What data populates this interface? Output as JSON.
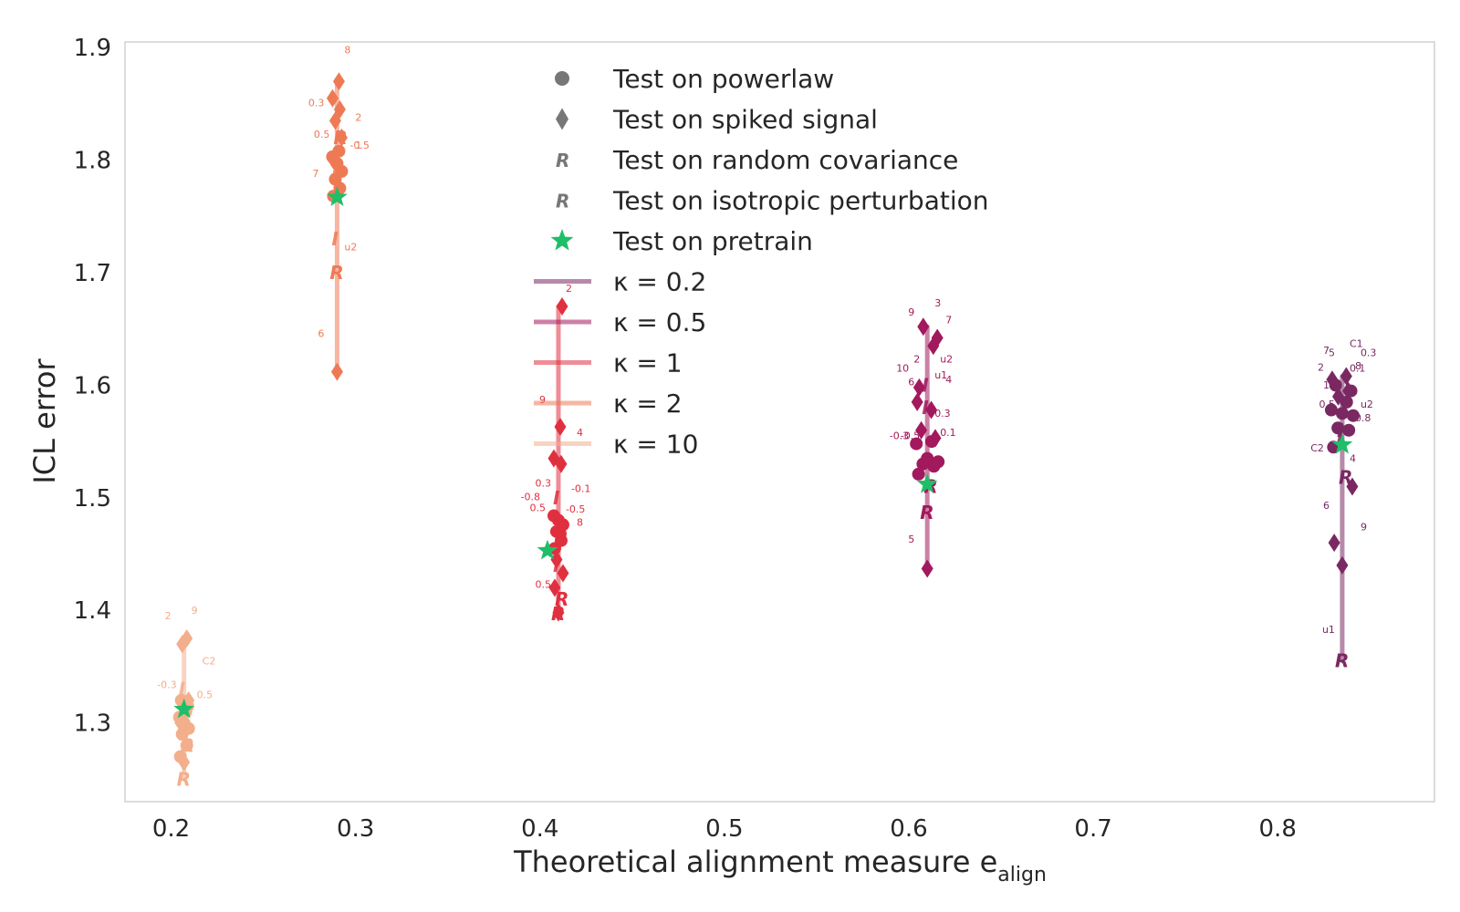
{
  "chart_data": {
    "type": "scatter",
    "title": "",
    "xlabel": "Theoretical alignment measure e",
    "xlabel_subscript": "align",
    "ylabel": "ICL error",
    "xlim": [
      0.175,
      0.885
    ],
    "ylim": [
      1.23,
      1.905
    ],
    "xticks": [
      "0.2",
      "0.3",
      "0.4",
      "0.5",
      "0.6",
      "0.7",
      "0.8"
    ],
    "yticks": [
      "1.3",
      "1.4",
      "1.5",
      "1.6",
      "1.7",
      "1.8",
      "1.9"
    ],
    "grid": false,
    "legend_position": "top-center",
    "legend": {
      "markers": [
        {
          "label": "Test on powerlaw",
          "marker": "circle"
        },
        {
          "label": "Test on spiked signal",
          "marker": "diamond"
        },
        {
          "label": "Test on random covariance",
          "marker": "R"
        },
        {
          "label": "Test on isotropic perturbation",
          "marker": "R"
        },
        {
          "label": "Test on pretrain",
          "marker": "star"
        }
      ],
      "kappa": [
        {
          "label": "κ =  0.2",
          "color": "#7a2862"
        },
        {
          "label": "κ =  0.5",
          "color": "#a2195d"
        },
        {
          "label": "κ =  1",
          "color": "#e0303f"
        },
        {
          "label": "κ =  2",
          "color": "#ee7a55"
        },
        {
          "label": "κ =  10",
          "color": "#f3ae8c"
        }
      ]
    },
    "pretrain_color": "#1fbe68",
    "series": [
      {
        "name": "κ =  10",
        "color": "#f3ae8c",
        "x": 0.207,
        "pretrain": 1.312,
        "powerlaw": [
          1.27,
          1.28,
          1.29,
          1.295,
          1.3,
          1.305,
          1.31,
          1.315,
          1.32
        ],
        "spiked": [
          1.265,
          1.3,
          1.32,
          1.37,
          1.375
        ],
        "random": [
          1.25,
          1.28
        ],
        "isotropic": [
          1.29,
          1.33
        ],
        "labels": [
          {
            "t": "9",
            "y": 1.397
          },
          {
            "t": "2",
            "y": 1.392
          },
          {
            "t": "C2",
            "y": 1.352
          },
          {
            "t": "-0.3",
            "y": 1.331
          },
          {
            "t": "0.5",
            "y": 1.322
          }
        ]
      },
      {
        "name": "κ =  2",
        "color": "#ee7a55",
        "x": 0.29,
        "pretrain": 1.767,
        "powerlaw": [
          1.768,
          1.775,
          1.783,
          1.79,
          1.797,
          1.803,
          1.808
        ],
        "spiked": [
          1.612,
          1.8,
          1.82,
          1.835,
          1.845,
          1.855,
          1.87
        ],
        "random": [
          1.7,
          1.82
        ],
        "isotropic": [
          1.73,
          1.79
        ],
        "labels": [
          {
            "t": "8",
            "y": 1.895
          },
          {
            "t": "0.3",
            "y": 1.848
          },
          {
            "t": "2",
            "y": 1.835
          },
          {
            "t": "0.5",
            "y": 1.82
          },
          {
            "t": "-0.5",
            "y": 1.81
          },
          {
            "t": "7",
            "y": 1.785
          },
          {
            "t": "u2",
            "y": 1.72
          },
          {
            "t": "6",
            "y": 1.643
          },
          {
            "t": "1",
            "y": 1.81
          }
        ]
      },
      {
        "name": "κ =  1",
        "color": "#e0303f",
        "x": 0.41,
        "pretrain": 1.453,
        "powerlaw": [
          1.455,
          1.462,
          1.47,
          1.476,
          1.48,
          1.484,
          1.468
        ],
        "spiked": [
          1.398,
          1.42,
          1.433,
          1.445,
          1.53,
          1.535,
          1.563,
          1.67
        ],
        "random": [
          1.397,
          1.41
        ],
        "isotropic": [
          1.44,
          1.5
        ],
        "labels": [
          {
            "t": "2",
            "y": 1.683
          },
          {
            "t": "9",
            "y": 1.584
          },
          {
            "t": "4",
            "y": 1.555
          },
          {
            "t": "0.3",
            "y": 1.51
          },
          {
            "t": "-0.1",
            "y": 1.505
          },
          {
            "t": "-0.8",
            "y": 1.498
          },
          {
            "t": "-0.5",
            "y": 1.487
          },
          {
            "t": "0.5",
            "y": 1.488
          },
          {
            "t": "8",
            "y": 1.475
          },
          {
            "t": "0.5",
            "y": 1.42
          }
        ]
      },
      {
        "name": "κ =  0.5",
        "color": "#a2195d",
        "x": 0.61,
        "pretrain": 1.512,
        "powerlaw": [
          1.521,
          1.528,
          1.53,
          1.532,
          1.535,
          1.548,
          1.55
        ],
        "spiked": [
          1.437,
          1.598,
          1.642,
          1.652,
          1.635,
          1.585,
          1.578,
          1.553,
          1.56
        ],
        "random": [
          1.487,
          1.51
        ],
        "isotropic": [
          1.58,
          1.6
        ],
        "labels": [
          {
            "t": "3",
            "y": 1.67
          },
          {
            "t": "9",
            "y": 1.662
          },
          {
            "t": "7",
            "y": 1.655
          },
          {
            "t": "2",
            "y": 1.62
          },
          {
            "t": "u2",
            "y": 1.62
          },
          {
            "t": "10",
            "y": 1.612
          },
          {
            "t": "u1",
            "y": 1.606
          },
          {
            "t": "6",
            "y": 1.6
          },
          {
            "t": "4",
            "y": 1.602
          },
          {
            "t": "-0.5",
            "y": 1.552
          },
          {
            "t": "0.1",
            "y": 1.555
          },
          {
            "t": "-0.3",
            "y": 1.552
          },
          {
            "t": "0.3",
            "y": 1.572
          },
          {
            "t": "5",
            "y": 1.46
          }
        ]
      },
      {
        "name": "κ =  0.2",
        "color": "#7a2862",
        "x": 0.835,
        "pretrain": 1.547,
        "powerlaw": [
          1.545,
          1.56,
          1.562,
          1.573,
          1.575,
          1.578,
          1.585,
          1.595,
          1.6
        ],
        "spiked": [
          1.44,
          1.46,
          1.51,
          1.59,
          1.595,
          1.605,
          1.608
        ],
        "random": [
          1.355,
          1.518
        ],
        "isotropic": [
          1.56,
          1.555
        ],
        "labels": [
          {
            "t": "C1",
            "y": 1.634
          },
          {
            "t": "7",
            "y": 1.628
          },
          {
            "t": "0.3",
            "y": 1.626
          },
          {
            "t": "5",
            "y": 1.626
          },
          {
            "t": "8",
            "y": 1.614
          },
          {
            "t": "2",
            "y": 1.613
          },
          {
            "t": "0.1",
            "y": 1.612
          },
          {
            "t": "1",
            "y": 1.597
          },
          {
            "t": "u2",
            "y": 1.58
          },
          {
            "t": "0.5",
            "y": 1.58
          },
          {
            "t": "0.8",
            "y": 1.568
          },
          {
            "t": "C2",
            "y": 1.541
          },
          {
            "t": "4",
            "y": 1.532
          },
          {
            "t": "6",
            "y": 1.49
          },
          {
            "t": "9",
            "y": 1.471
          },
          {
            "t": "u1",
            "y": 1.38
          }
        ]
      }
    ]
  }
}
